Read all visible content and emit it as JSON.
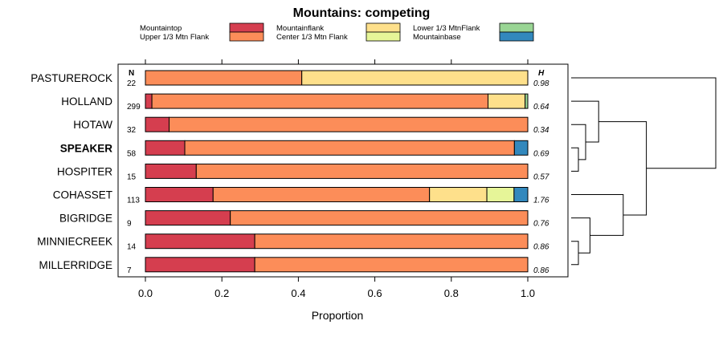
{
  "chart_data": {
    "type": "bar",
    "orientation": "horizontal-stacked",
    "title": "Mountains: competing",
    "xlabel": "Proportion",
    "ylabel": "",
    "xlim": [
      0,
      1
    ],
    "xticks": [
      "0.0",
      "0.2",
      "0.4",
      "0.6",
      "0.8",
      "1.0"
    ],
    "xtick_values": [
      0,
      0.2,
      0.4,
      0.6,
      0.8,
      1.0
    ],
    "n_header": "N",
    "h_header": "H",
    "legend": [
      {
        "label": "Mountaintop",
        "color": "#d53e4f"
      },
      {
        "label": "Upper 1/3 Mtn Flank",
        "color": "#fc8d59"
      },
      {
        "label": "Mountainflank",
        "color": "#fee08b"
      },
      {
        "label": "Center 1/3 Mtn Flank",
        "color": "#e6f598"
      },
      {
        "label": "Lower 1/3 MtnFlank",
        "color": "#99d594"
      },
      {
        "label": "Mountainbase",
        "color": "#3288bd"
      }
    ],
    "categories": [
      "PASTUREROCK",
      "HOLLAND",
      "HOTAW",
      "SPEAKER",
      "HOSPITER",
      "COHASSET",
      "BIGRIDGE",
      "MINNIECREEK",
      "MILLERRIDGE"
    ],
    "highlight": "SPEAKER",
    "n": [
      "22",
      "299",
      "32",
      "58",
      "15",
      "113",
      "9",
      "14",
      "7"
    ],
    "h": [
      "0.98",
      "0.64",
      "0.34",
      "0.69",
      "0.57",
      "1.76",
      "0.76",
      "0.86",
      "0.86"
    ],
    "series": [
      {
        "name": "Mountaintop",
        "values": [
          0.0,
          0.017,
          0.062,
          0.103,
          0.133,
          0.177,
          0.222,
          0.286,
          0.286
        ]
      },
      {
        "name": "Upper 1/3 Mtn Flank",
        "values": [
          0.409,
          0.879,
          0.938,
          0.862,
          0.867,
          0.566,
          0.778,
          0.714,
          0.714
        ]
      },
      {
        "name": "Mountainflank",
        "values": [
          0.591,
          0.097,
          0.0,
          0.0,
          0.0,
          0.15,
          0.0,
          0.0,
          0.0
        ]
      },
      {
        "name": "Center 1/3 Mtn Flank",
        "values": [
          0.0,
          0.0,
          0.0,
          0.0,
          0.0,
          0.071,
          0.0,
          0.0,
          0.0
        ]
      },
      {
        "name": "Lower 1/3 MtnFlank",
        "values": [
          0.0,
          0.007,
          0.0,
          0.0,
          0.0,
          0.0,
          0.0,
          0.0,
          0.0
        ]
      },
      {
        "name": "Mountainbase",
        "values": [
          0.0,
          0.0,
          0.0,
          0.035,
          0.0,
          0.036,
          0.0,
          0.0,
          0.0
        ]
      }
    ],
    "dendrogram": {
      "leaves": [
        "PASTUREROCK",
        "HOLLAND",
        "HOTAW",
        "SPEAKER",
        "HOSPITER",
        "COHASSET",
        "BIGRIDGE",
        "MINNIECREEK",
        "MILLERRIDGE"
      ],
      "merges": [
        {
          "a": "SPEAKER",
          "b": "HOSPITER",
          "height": 0.05
        },
        {
          "a": "MINNIECREEK",
          "b": "MILLERRIDGE",
          "height": 0.05
        },
        {
          "a": "HOTAW",
          "b": "SPEAKER+HOSPITER",
          "height": 0.1
        },
        {
          "a": "BIGRIDGE",
          "b": "MINNIECREEK+MILLERRIDGE",
          "height": 0.13
        },
        {
          "a": "HOLLAND",
          "b": "HOTAW+SPEAKER+HOSPITER",
          "height": 0.19
        },
        {
          "a": "COHASSET",
          "b": "BIGRIDGE+MINNIECREEK+MILLERRIDGE",
          "height": 0.36
        },
        {
          "a": "HOLLAND+HOTAW+SPEAKER+HOSPITER",
          "b": "COHASSET+BIGRIDGE+MINNIECREEK+MILLERRIDGE",
          "height": 0.52
        },
        {
          "a": "PASTUREROCK",
          "b": "REST",
          "height": 1.0
        }
      ]
    }
  }
}
